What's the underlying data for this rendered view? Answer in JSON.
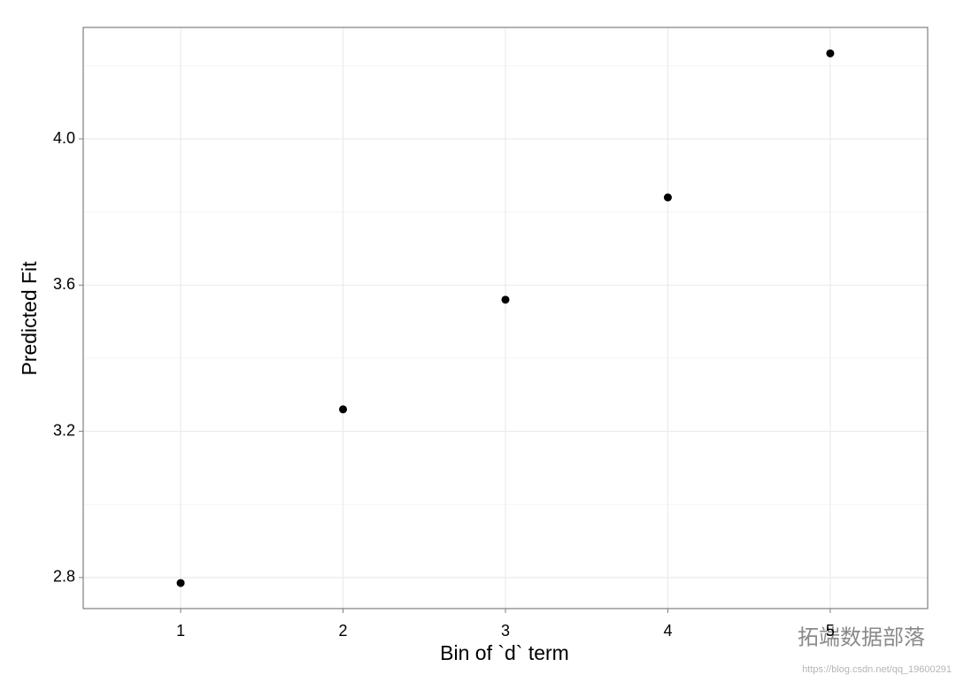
{
  "chart_data": {
    "type": "scatter",
    "xlabel": "Bin of `d` term",
    "ylabel": "Predicted Fit",
    "x": [
      1,
      2,
      3,
      4,
      5
    ],
    "series": [
      {
        "name": "Predicted Fit",
        "color": "#000000",
        "values": [
          2.785,
          3.26,
          3.56,
          3.84,
          4.234
        ]
      }
    ],
    "xlim": [
      0.4,
      5.6
    ],
    "ylim": [
      2.715,
      4.305
    ],
    "xticks": [
      1,
      2,
      3,
      4,
      5
    ],
    "yticks": [
      {
        "value": 2.8,
        "label": "2.8"
      },
      {
        "value": 3.2,
        "label": "3.2"
      },
      {
        "value": 3.6,
        "label": "3.6"
      },
      {
        "value": 4.0,
        "label": "4.0"
      }
    ],
    "yminorticks": [
      3.0,
      3.4,
      3.8,
      4.2
    ],
    "grid": true
  },
  "watermark": {
    "brand": "拓端数据部落",
    "url": "https://blog.csdn.net/qq_19600291"
  }
}
